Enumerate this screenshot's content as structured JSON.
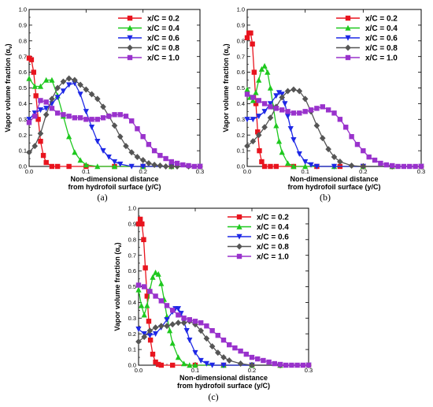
{
  "chart_data": [
    {
      "type": "line",
      "caption": "(a)",
      "xlabel": [
        "Non-dimensional distance",
        "from hydrofoil surface (y/C)"
      ],
      "ylabel": "Vapor volume fraction (α_v)",
      "xlim": [
        0,
        0.3
      ],
      "ylim": [
        0,
        1.0
      ],
      "xticks": [
        "0.0",
        "0.1",
        "0.2",
        "0.3"
      ],
      "yticks": [
        "0.0",
        "0.1",
        "0.2",
        "0.3",
        "0.4",
        "0.5",
        "0.6",
        "0.7",
        "0.8",
        "0.9",
        "1.0"
      ],
      "grid": false,
      "legend": "top-right",
      "series": [
        {
          "name": "x/C = 0.2",
          "color": "#e8141e",
          "marker": "square",
          "x": [
            0,
            0.004,
            0.008,
            0.012,
            0.016,
            0.02,
            0.025,
            0.03,
            0.04,
            0.05,
            0.07,
            0.1,
            0.15,
            0.2,
            0.25,
            0.3
          ],
          "y": [
            0.69,
            0.68,
            0.6,
            0.45,
            0.3,
            0.16,
            0.07,
            0.025,
            0.0,
            0.0,
            0.0,
            0.0,
            0.0,
            0.0,
            0.0,
            0.0
          ]
        },
        {
          "name": "x/C = 0.4",
          "color": "#1ec81e",
          "marker": "triangle-up",
          "x": [
            0,
            0.01,
            0.02,
            0.03,
            0.04,
            0.05,
            0.06,
            0.07,
            0.08,
            0.09,
            0.1,
            0.12,
            0.15,
            0.2,
            0.25,
            0.3
          ],
          "y": [
            0.56,
            0.51,
            0.51,
            0.55,
            0.55,
            0.45,
            0.32,
            0.19,
            0.09,
            0.04,
            0.01,
            0.0,
            0.0,
            0.0,
            0.0,
            0.0
          ]
        },
        {
          "name": "x/C = 0.6",
          "color": "#1e28e6",
          "marker": "triangle-down",
          "x": [
            0,
            0.01,
            0.02,
            0.03,
            0.04,
            0.05,
            0.06,
            0.07,
            0.08,
            0.09,
            0.1,
            0.11,
            0.12,
            0.13,
            0.14,
            0.15,
            0.16,
            0.18,
            0.2,
            0.25,
            0.3
          ],
          "y": [
            0.3,
            0.34,
            0.36,
            0.37,
            0.4,
            0.44,
            0.48,
            0.52,
            0.53,
            0.46,
            0.35,
            0.25,
            0.16,
            0.1,
            0.06,
            0.03,
            0.015,
            0.0,
            0.0,
            0.0,
            0.0
          ]
        },
        {
          "name": "x/C = 0.8",
          "color": "#555555",
          "marker": "diamond",
          "x": [
            0,
            0.01,
            0.02,
            0.03,
            0.04,
            0.05,
            0.06,
            0.07,
            0.08,
            0.09,
            0.1,
            0.11,
            0.12,
            0.13,
            0.14,
            0.15,
            0.16,
            0.17,
            0.18,
            0.19,
            0.2,
            0.21,
            0.22,
            0.23,
            0.24,
            0.25,
            0.26,
            0.28,
            0.3
          ],
          "y": [
            0.09,
            0.13,
            0.21,
            0.33,
            0.43,
            0.5,
            0.54,
            0.56,
            0.55,
            0.52,
            0.49,
            0.46,
            0.43,
            0.38,
            0.32,
            0.26,
            0.19,
            0.13,
            0.09,
            0.06,
            0.04,
            0.02,
            0.01,
            0.005,
            0.0,
            0.0,
            0.0,
            0.0,
            0.0
          ]
        },
        {
          "name": "x/C = 1.0",
          "color": "#9932cc",
          "marker": "square",
          "x": [
            0,
            0.01,
            0.02,
            0.03,
            0.04,
            0.05,
            0.06,
            0.07,
            0.08,
            0.09,
            0.1,
            0.11,
            0.12,
            0.13,
            0.14,
            0.15,
            0.16,
            0.17,
            0.18,
            0.19,
            0.2,
            0.21,
            0.22,
            0.23,
            0.24,
            0.25,
            0.26,
            0.27,
            0.28,
            0.29,
            0.3
          ],
          "y": [
            0.28,
            0.32,
            0.42,
            0.41,
            0.37,
            0.34,
            0.33,
            0.32,
            0.31,
            0.31,
            0.3,
            0.3,
            0.3,
            0.31,
            0.32,
            0.33,
            0.33,
            0.32,
            0.29,
            0.24,
            0.19,
            0.14,
            0.1,
            0.07,
            0.05,
            0.03,
            0.02,
            0.01,
            0.005,
            0.0,
            0.0
          ]
        }
      ]
    },
    {
      "type": "line",
      "caption": "(b)",
      "xlabel": [
        "Non-dimensional distance",
        "from hydrofoil surface (y/C)"
      ],
      "ylabel": "Vapor volume fraction (α_v)",
      "xlim": [
        0,
        0.3
      ],
      "ylim": [
        0,
        1.0
      ],
      "xticks": [
        "0.0",
        "0.1",
        "0.2",
        "0.3"
      ],
      "yticks": [
        "0.0",
        "0.1",
        "0.2",
        "0.3",
        "0.4",
        "0.5",
        "0.6",
        "0.7",
        "0.8",
        "0.9",
        "1.0"
      ],
      "grid": false,
      "legend": "top-right",
      "series": [
        {
          "name": "x/C = 0.2",
          "color": "#e8141e",
          "marker": "square",
          "x": [
            0,
            0.003,
            0.006,
            0.009,
            0.012,
            0.015,
            0.018,
            0.021,
            0.025,
            0.03,
            0.04,
            0.05,
            0.08,
            0.12,
            0.16,
            0.2,
            0.25,
            0.3
          ],
          "y": [
            0.82,
            0.85,
            0.85,
            0.78,
            0.6,
            0.4,
            0.22,
            0.1,
            0.03,
            0.0,
            0.0,
            0.0,
            0.0,
            0.0,
            0.0,
            0.0,
            0.0,
            0.0
          ]
        },
        {
          "name": "x/C = 0.4",
          "color": "#1ec81e",
          "marker": "triangle-up",
          "x": [
            0,
            0.005,
            0.01,
            0.015,
            0.02,
            0.025,
            0.03,
            0.035,
            0.04,
            0.045,
            0.05,
            0.055,
            0.06,
            0.07,
            0.08,
            0.1,
            0.15,
            0.2,
            0.25,
            0.3
          ],
          "y": [
            0.49,
            0.44,
            0.42,
            0.47,
            0.55,
            0.62,
            0.64,
            0.6,
            0.5,
            0.38,
            0.26,
            0.16,
            0.09,
            0.02,
            0.0,
            0.0,
            0.0,
            0.0,
            0.0,
            0.0
          ]
        },
        {
          "name": "x/C = 0.6",
          "color": "#1e28e6",
          "marker": "triangle-down",
          "x": [
            0,
            0.01,
            0.02,
            0.03,
            0.04,
            0.05,
            0.055,
            0.06,
            0.065,
            0.07,
            0.075,
            0.08,
            0.09,
            0.1,
            0.11,
            0.12,
            0.15,
            0.2,
            0.25,
            0.3
          ],
          "y": [
            0.3,
            0.3,
            0.32,
            0.35,
            0.4,
            0.45,
            0.47,
            0.46,
            0.4,
            0.32,
            0.24,
            0.17,
            0.08,
            0.03,
            0.01,
            0.0,
            0.0,
            0.0,
            0.0,
            0.0
          ]
        },
        {
          "name": "x/C = 0.8",
          "color": "#555555",
          "marker": "diamond",
          "x": [
            0,
            0.01,
            0.02,
            0.03,
            0.04,
            0.05,
            0.06,
            0.07,
            0.08,
            0.09,
            0.1,
            0.11,
            0.12,
            0.13,
            0.14,
            0.15,
            0.16,
            0.18,
            0.2,
            0.25,
            0.3
          ],
          "y": [
            0.13,
            0.16,
            0.2,
            0.25,
            0.31,
            0.38,
            0.44,
            0.48,
            0.49,
            0.48,
            0.43,
            0.35,
            0.26,
            0.18,
            0.11,
            0.06,
            0.03,
            0.005,
            0.0,
            0.0,
            0.0
          ]
        },
        {
          "name": "x/C = 1.0",
          "color": "#9932cc",
          "marker": "square",
          "x": [
            0,
            0.01,
            0.02,
            0.03,
            0.04,
            0.05,
            0.06,
            0.07,
            0.08,
            0.09,
            0.1,
            0.11,
            0.12,
            0.13,
            0.14,
            0.15,
            0.16,
            0.17,
            0.18,
            0.19,
            0.2,
            0.21,
            0.22,
            0.23,
            0.24,
            0.25,
            0.26,
            0.27,
            0.28,
            0.29,
            0.3
          ],
          "y": [
            0.46,
            0.44,
            0.42,
            0.4,
            0.38,
            0.37,
            0.36,
            0.35,
            0.34,
            0.34,
            0.35,
            0.36,
            0.37,
            0.38,
            0.36,
            0.34,
            0.3,
            0.25,
            0.19,
            0.14,
            0.1,
            0.06,
            0.04,
            0.02,
            0.01,
            0.005,
            0.0,
            0.0,
            0.0,
            0.0,
            0.0
          ]
        }
      ]
    },
    {
      "type": "line",
      "caption": "(c)",
      "xlabel": [
        "Non-dimensional distance",
        "from hydrofoil surface (y/C)"
      ],
      "ylabel": "Vapor volume fraction (α_v)",
      "xlim": [
        0,
        0.3
      ],
      "ylim": [
        0,
        1.0
      ],
      "xticks": [
        "0.0",
        "0.1",
        "0.2",
        "0.3"
      ],
      "yticks": [
        "0.0",
        "0.1",
        "0.2",
        "0.3",
        "0.4",
        "0.5",
        "0.6",
        "0.7",
        "0.8",
        "0.9",
        "1.0"
      ],
      "grid": false,
      "legend": "top-right",
      "series": [
        {
          "name": "x/C = 0.2",
          "color": "#e8141e",
          "marker": "square",
          "x": [
            0,
            0.003,
            0.006,
            0.009,
            0.012,
            0.015,
            0.018,
            0.021,
            0.025,
            0.03,
            0.035,
            0.04,
            0.06,
            0.1,
            0.15,
            0.2,
            0.25,
            0.3
          ],
          "y": [
            0.9,
            0.93,
            0.9,
            0.8,
            0.62,
            0.44,
            0.28,
            0.16,
            0.07,
            0.02,
            0.005,
            0.0,
            0.0,
            0.0,
            0.0,
            0.0,
            0.0,
            0.0
          ]
        },
        {
          "name": "x/C = 0.4",
          "color": "#1ec81e",
          "marker": "triangle-up",
          "x": [
            0,
            0.005,
            0.01,
            0.015,
            0.02,
            0.025,
            0.03,
            0.035,
            0.04,
            0.045,
            0.05,
            0.055,
            0.06,
            0.07,
            0.08,
            0.09,
            0.1,
            0.15,
            0.2,
            0.25,
            0.3
          ],
          "y": [
            0.48,
            0.38,
            0.32,
            0.38,
            0.48,
            0.56,
            0.59,
            0.58,
            0.52,
            0.42,
            0.31,
            0.22,
            0.14,
            0.05,
            0.01,
            0.0,
            0.0,
            0.0,
            0.0,
            0.0,
            0.0
          ]
        },
        {
          "name": "x/C = 0.6",
          "color": "#1e28e6",
          "marker": "triangle-down",
          "x": [
            0,
            0.01,
            0.02,
            0.03,
            0.04,
            0.05,
            0.06,
            0.065,
            0.07,
            0.075,
            0.08,
            0.085,
            0.09,
            0.1,
            0.11,
            0.12,
            0.13,
            0.15,
            0.2,
            0.25,
            0.3
          ],
          "y": [
            0.23,
            0.2,
            0.19,
            0.2,
            0.24,
            0.29,
            0.34,
            0.36,
            0.36,
            0.33,
            0.28,
            0.22,
            0.16,
            0.08,
            0.03,
            0.01,
            0.0,
            0.0,
            0.0,
            0.0,
            0.0
          ]
        },
        {
          "name": "x/C = 0.8",
          "color": "#555555",
          "marker": "diamond",
          "x": [
            0,
            0.01,
            0.02,
            0.03,
            0.04,
            0.05,
            0.06,
            0.07,
            0.08,
            0.09,
            0.1,
            0.11,
            0.12,
            0.13,
            0.14,
            0.15,
            0.16,
            0.18,
            0.2,
            0.25,
            0.3
          ],
          "y": [
            0.15,
            0.18,
            0.22,
            0.24,
            0.25,
            0.25,
            0.26,
            0.27,
            0.27,
            0.28,
            0.26,
            0.22,
            0.17,
            0.12,
            0.08,
            0.05,
            0.03,
            0.01,
            0.0,
            0.0,
            0.0
          ]
        },
        {
          "name": "x/C = 1.0",
          "color": "#9932cc",
          "marker": "square",
          "x": [
            0,
            0.01,
            0.02,
            0.03,
            0.04,
            0.05,
            0.06,
            0.07,
            0.08,
            0.09,
            0.1,
            0.11,
            0.12,
            0.13,
            0.14,
            0.15,
            0.16,
            0.17,
            0.18,
            0.19,
            0.2,
            0.21,
            0.22,
            0.23,
            0.24,
            0.25,
            0.26,
            0.27,
            0.28,
            0.29,
            0.3
          ],
          "y": [
            0.51,
            0.5,
            0.47,
            0.44,
            0.41,
            0.38,
            0.35,
            0.32,
            0.3,
            0.29,
            0.28,
            0.27,
            0.25,
            0.22,
            0.19,
            0.16,
            0.13,
            0.11,
            0.09,
            0.07,
            0.05,
            0.04,
            0.03,
            0.02,
            0.01,
            0.005,
            0.0,
            0.0,
            0.0,
            0.0,
            0.0
          ]
        }
      ]
    }
  ]
}
